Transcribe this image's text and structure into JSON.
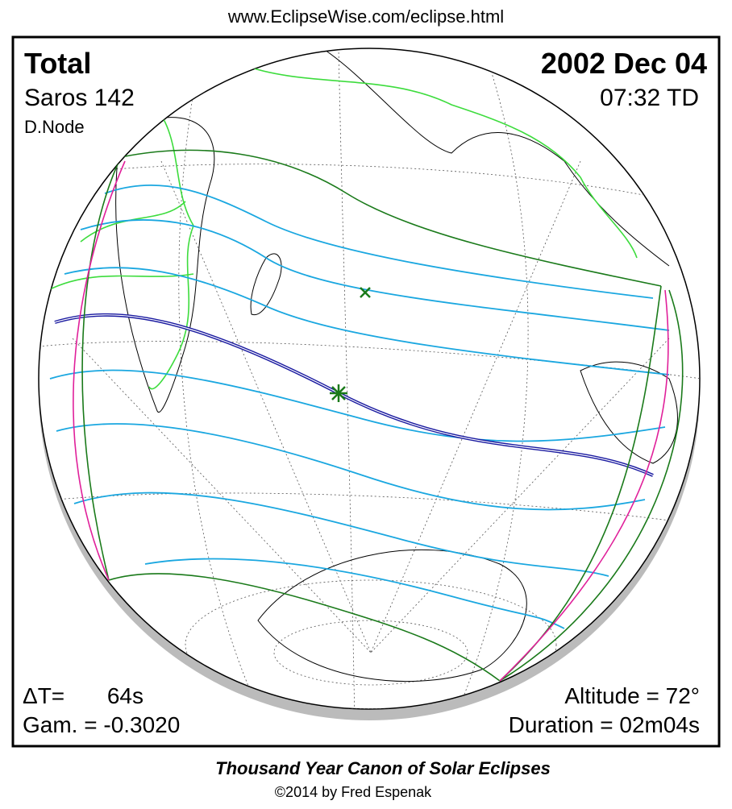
{
  "url": "www.EclipseWise.com/eclipse.html",
  "map": {
    "eclipse_type": "Total",
    "date": "2002 Dec 04",
    "saros": "Saros 142",
    "time": "07:32 TD",
    "node": "D.Node",
    "delta_t_label": "ΔT=",
    "delta_t_value": "64s",
    "gamma": "Gam. = -0.3020",
    "altitude": "Altitude = 72°",
    "duration": "Duration = 02m04s"
  },
  "footer": {
    "title": "Thousand Year Canon of Solar Eclipses",
    "credit": "©2014 by Fred Espenak"
  }
}
